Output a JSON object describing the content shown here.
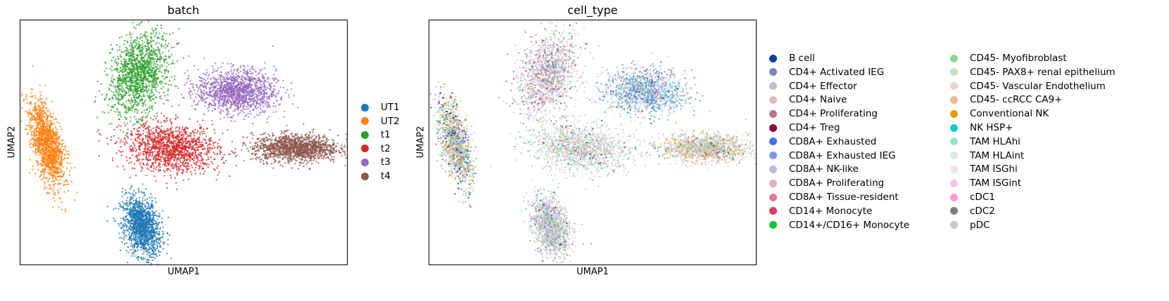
{
  "chart_data": [
    {
      "type": "scatter",
      "title": "batch",
      "xlabel": "UMAP1",
      "ylabel": "UMAP2",
      "grid": false,
      "ticks": false,
      "legend_placement": "right",
      "series": [
        {
          "name": "UT1",
          "color": "#1f77b4",
          "center": [
            0.37,
            0.16
          ],
          "spread": [
            0.05,
            0.11
          ]
        },
        {
          "name": "UT2",
          "color": "#ff7f0e",
          "center": [
            0.08,
            0.5
          ],
          "spread": [
            0.04,
            0.16
          ]
        },
        {
          "name": "t1",
          "color": "#2ca02c",
          "center": [
            0.36,
            0.78
          ],
          "spread": [
            0.08,
            0.15
          ]
        },
        {
          "name": "t2",
          "color": "#d62728",
          "center": [
            0.46,
            0.48
          ],
          "spread": [
            0.13,
            0.09
          ]
        },
        {
          "name": "t3",
          "color": "#9467bd",
          "center": [
            0.66,
            0.71
          ],
          "spread": [
            0.11,
            0.08
          ]
        },
        {
          "name": "t4",
          "color": "#8c564b",
          "center": [
            0.84,
            0.48
          ],
          "spread": [
            0.12,
            0.05
          ]
        }
      ]
    },
    {
      "type": "scatter",
      "title": "cell_type",
      "xlabel": "UMAP1",
      "ylabel": "UMAP2",
      "grid": false,
      "ticks": false,
      "legend_placement": "right",
      "series": [
        {
          "name": "B cell",
          "color": "#023fa5"
        },
        {
          "name": "CD4+ Activated IEG",
          "color": "#7d87b9"
        },
        {
          "name": "CD4+ Effector",
          "color": "#bec1d4"
        },
        {
          "name": "CD4+ Naive",
          "color": "#d6bcc0"
        },
        {
          "name": "CD4+ Proliferating",
          "color": "#bb7784"
        },
        {
          "name": "CD4+ Treg",
          "color": "#8e063b"
        },
        {
          "name": "CD8A+ Exhausted",
          "color": "#4a6fe3"
        },
        {
          "name": "CD8A+ Exhausted IEG",
          "color": "#8595e1"
        },
        {
          "name": "CD8A+ NK-like",
          "color": "#b5bbe3"
        },
        {
          "name": "CD8A+ Proliferating",
          "color": "#e6afb9"
        },
        {
          "name": "CD8A+ Tissue-resident",
          "color": "#e07b91"
        },
        {
          "name": "CD14+ Monocyte",
          "color": "#d33f6a"
        },
        {
          "name": "CD14+/CD16+ Monocyte",
          "color": "#11c638"
        },
        {
          "name": "CD45- Myofibroblast",
          "color": "#8dd593"
        },
        {
          "name": "CD45- PAX8+ renal epithelium",
          "color": "#c6dec7"
        },
        {
          "name": "CD45- Vascular Endothelium",
          "color": "#ead3c6"
        },
        {
          "name": "CD45- ccRCC CA9+",
          "color": "#f0b98d"
        },
        {
          "name": "Conventional NK",
          "color": "#ef9708"
        },
        {
          "name": "NK HSP+",
          "color": "#0fcfc0"
        },
        {
          "name": "TAM HLAhi",
          "color": "#9cded6"
        },
        {
          "name": "TAM HLAint",
          "color": "#d5eae7"
        },
        {
          "name": "TAM ISGhi",
          "color": "#f3e1eb"
        },
        {
          "name": "TAM ISGint",
          "color": "#f6c4e1"
        },
        {
          "name": "cDC1",
          "color": "#f79cd4"
        },
        {
          "name": "cDC2",
          "color": "#7f7f7f"
        },
        {
          "name": "pDC",
          "color": "#c7c7c7"
        }
      ]
    }
  ]
}
